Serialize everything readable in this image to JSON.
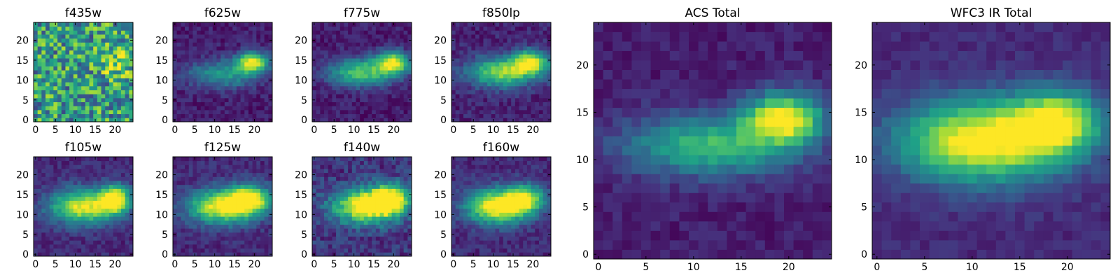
{
  "figure": {
    "colormap": "viridis",
    "image_size": 25,
    "colormap_stops": [
      "#440154",
      "#46327e",
      "#365c8d",
      "#277f8e",
      "#1fa187",
      "#4ac16d",
      "#a0da39",
      "#fde725"
    ]
  },
  "chart_data": [
    {
      "type": "heatmap",
      "title": "f435w",
      "x_ticks": [
        "0",
        "5",
        "10",
        "15",
        "20"
      ],
      "y_ticks": [
        "0",
        "5",
        "10",
        "15",
        "20"
      ],
      "xlim": [
        0,
        24
      ],
      "ylim": [
        0,
        24
      ],
      "model": {
        "noise": 0.34,
        "center": [
          20,
          14.5
        ],
        "sigma": [
          3.0,
          2.2
        ],
        "amp": 0.35,
        "base": 0.55,
        "knot": null
      }
    },
    {
      "type": "heatmap",
      "title": "f625w",
      "x_ticks": [
        "0",
        "5",
        "10",
        "15",
        "20"
      ],
      "y_ticks": [
        "0",
        "5",
        "10",
        "15",
        "20"
      ],
      "xlim": [
        0,
        24
      ],
      "ylim": [
        0,
        24
      ],
      "model": {
        "noise": 0.08,
        "center": [
          19.5,
          14.5
        ],
        "sigma": [
          2.8,
          1.8
        ],
        "amp": 0.85,
        "base": 0.08,
        "knot": [
          12,
          11.5,
          6.5,
          2.5,
          0.45
        ]
      }
    },
    {
      "type": "heatmap",
      "title": "f775w",
      "x_ticks": [
        "0",
        "5",
        "10",
        "15",
        "20"
      ],
      "y_ticks": [
        "0",
        "5",
        "10",
        "15",
        "20"
      ],
      "xlim": [
        0,
        24
      ],
      "ylim": [
        0,
        24
      ],
      "model": {
        "noise": 0.08,
        "center": [
          20,
          14.5
        ],
        "sigma": [
          3.0,
          1.9
        ],
        "amp": 0.8,
        "base": 0.08,
        "knot": [
          12,
          12,
          6.0,
          2.5,
          0.65
        ]
      }
    },
    {
      "type": "heatmap",
      "title": "f850lp",
      "x_ticks": [
        "0",
        "5",
        "10",
        "15",
        "20"
      ],
      "y_ticks": [
        "0",
        "5",
        "10",
        "15",
        "20"
      ],
      "xlim": [
        0,
        24
      ],
      "ylim": [
        0,
        24
      ],
      "model": {
        "noise": 0.09,
        "center": [
          19.5,
          14.5
        ],
        "sigma": [
          3.2,
          2.1
        ],
        "amp": 0.8,
        "base": 0.1,
        "knot": [
          12,
          12,
          6.0,
          2.7,
          0.7
        ]
      }
    },
    {
      "type": "heatmap",
      "title": "f105w",
      "x_ticks": [
        "0",
        "5",
        "10",
        "15",
        "20"
      ],
      "y_ticks": [
        "0",
        "5",
        "10",
        "15",
        "20"
      ],
      "xlim": [
        0,
        24
      ],
      "ylim": [
        0,
        24
      ],
      "model": {
        "noise": 0.08,
        "center": [
          20,
          14
        ],
        "sigma": [
          2.6,
          2.4
        ],
        "amp": 0.85,
        "base": 0.12,
        "knot": [
          12,
          12,
          6.0,
          3.0,
          0.85
        ]
      }
    },
    {
      "type": "heatmap",
      "title": "f125w",
      "x_ticks": [
        "0",
        "5",
        "10",
        "15",
        "20"
      ],
      "y_ticks": [
        "0",
        "5",
        "10",
        "15",
        "20"
      ],
      "xlim": [
        0,
        24
      ],
      "ylim": [
        0,
        24
      ],
      "model": {
        "noise": 0.08,
        "center": [
          19,
          14
        ],
        "sigma": [
          3.5,
          2.4
        ],
        "amp": 0.8,
        "base": 0.12,
        "knot": [
          12,
          12,
          6.0,
          3.0,
          0.9
        ]
      }
    },
    {
      "type": "heatmap",
      "title": "f140w",
      "x_ticks": [
        "0",
        "5",
        "10",
        "15",
        "20"
      ],
      "y_ticks": [
        "0",
        "5",
        "10",
        "15",
        "20"
      ],
      "xlim": [
        0,
        24
      ],
      "ylim": [
        0,
        24
      ],
      "model": {
        "noise": 0.12,
        "center": [
          19,
          14
        ],
        "sigma": [
          3.5,
          2.5
        ],
        "amp": 0.85,
        "base": 0.15,
        "knot": [
          13,
          12,
          6.0,
          3.0,
          0.9
        ]
      }
    },
    {
      "type": "heatmap",
      "title": "f160w",
      "x_ticks": [
        "0",
        "5",
        "10",
        "15",
        "20"
      ],
      "y_ticks": [
        "0",
        "5",
        "10",
        "15",
        "20"
      ],
      "xlim": [
        0,
        24
      ],
      "ylim": [
        0,
        24
      ],
      "model": {
        "noise": 0.08,
        "center": [
          18,
          14
        ],
        "sigma": [
          3.5,
          2.4
        ],
        "amp": 0.7,
        "base": 0.12,
        "knot": [
          11,
          12,
          5.5,
          3.0,
          0.95
        ]
      }
    },
    {
      "type": "heatmap",
      "title": "ACS Total",
      "x_ticks": [
        "0",
        "5",
        "10",
        "15",
        "20"
      ],
      "y_ticks": [
        "0",
        "5",
        "10",
        "15",
        "20"
      ],
      "xlim": [
        0,
        24
      ],
      "ylim": [
        0,
        24
      ],
      "model": {
        "noise": 0.06,
        "center": [
          19.5,
          14.5
        ],
        "sigma": [
          2.8,
          1.8
        ],
        "amp": 0.9,
        "base": 0.08,
        "knot": [
          12,
          11.5,
          6.5,
          2.3,
          0.6
        ]
      }
    },
    {
      "type": "heatmap",
      "title": "WFC3 IR Total",
      "x_ticks": [
        "0",
        "5",
        "10",
        "15",
        "20"
      ],
      "y_ticks": [
        "0",
        "5",
        "10",
        "15",
        "20"
      ],
      "xlim": [
        0,
        24
      ],
      "ylim": [
        0,
        24
      ],
      "model": {
        "noise": 0.05,
        "center": [
          19,
          14
        ],
        "sigma": [
          3.2,
          2.3
        ],
        "amp": 0.75,
        "base": 0.12,
        "knot": [
          11,
          12,
          6.0,
          3.0,
          0.95
        ]
      }
    }
  ]
}
